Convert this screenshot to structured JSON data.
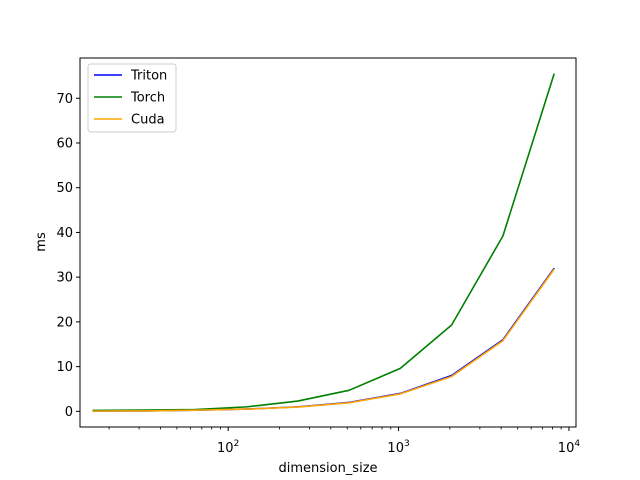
{
  "chart_data": {
    "type": "line",
    "title": "",
    "xlabel": "dimension_size",
    "ylabel": "ms",
    "xscale": "log",
    "xlim": [
      13.5,
      11000
    ],
    "ylim": [
      -3.5,
      79
    ],
    "grid": false,
    "legend_position": "top-left",
    "x": [
      16,
      32,
      64,
      128,
      256,
      512,
      1024,
      2048,
      4096,
      8192
    ],
    "x_ticks": [
      {
        "value": 100,
        "base": "10",
        "exp": "2"
      },
      {
        "value": 1000,
        "base": "10",
        "exp": "3"
      },
      {
        "value": 10000,
        "base": "10",
        "exp": "4"
      }
    ],
    "y_ticks": [
      {
        "value": 0,
        "label": "0"
      },
      {
        "value": 10,
        "label": "10"
      },
      {
        "value": 20,
        "label": "20"
      },
      {
        "value": 30,
        "label": "30"
      },
      {
        "value": 40,
        "label": "40"
      },
      {
        "value": 50,
        "label": "50"
      },
      {
        "value": 60,
        "label": "60"
      },
      {
        "value": 70,
        "label": "70"
      }
    ],
    "series": [
      {
        "name": "Triton",
        "color": "#0000ff",
        "values": [
          0.05,
          0.1,
          0.25,
          0.5,
          1.0,
          2.0,
          4.0,
          8.0,
          16.0,
          32.0
        ]
      },
      {
        "name": "Torch",
        "color": "#008000",
        "values": [
          0.2,
          0.3,
          0.4,
          1.0,
          2.3,
          4.7,
          9.6,
          19.3,
          39.2,
          75.5
        ]
      },
      {
        "name": "Cuda",
        "color": "#ffa500",
        "values": [
          0.05,
          0.1,
          0.25,
          0.5,
          0.95,
          1.9,
          3.9,
          7.8,
          15.8,
          31.8
        ]
      }
    ]
  }
}
